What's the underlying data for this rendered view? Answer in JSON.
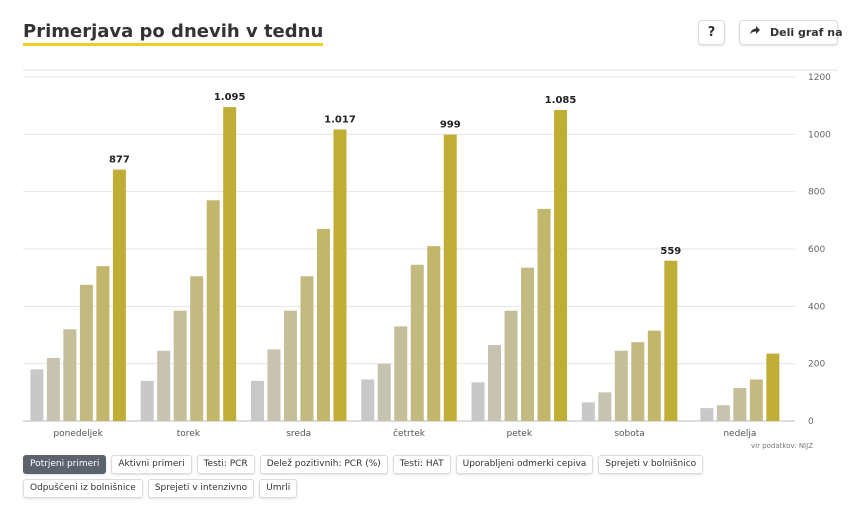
{
  "header": {
    "title": "Primerjava po dnevih v tednu",
    "help_label": "?",
    "share_label": "Deli graf na"
  },
  "source": "vir podatkov: NIJZ",
  "tabs": [
    {
      "label": "Potrjeni primeri",
      "active": true
    },
    {
      "label": "Aktivni primeri",
      "active": false
    },
    {
      "label": "Testi: PCR",
      "active": false
    },
    {
      "label": "Delež pozitivnih: PCR (%)",
      "active": false
    },
    {
      "label": "Testi: HAT",
      "active": false
    },
    {
      "label": "Uporabljeni odmerki cepiva",
      "active": false
    },
    {
      "label": "Sprejeti v bolnišnico",
      "active": false
    },
    {
      "label": "Odpuščeni iz bolnišnice",
      "active": false
    },
    {
      "label": "Sprejeti v intenzivno",
      "active": false
    },
    {
      "label": "Umrli",
      "active": false
    }
  ],
  "colors": {
    "bars": [
      "#c8c8c8",
      "#c6c3b0",
      "#c4bf99",
      "#c3ba82",
      "#c2b66a",
      "#c1b153",
      "#c0ad36"
    ],
    "accent": "#f1cd1f",
    "grid": "#e5e5e5"
  },
  "chart_data": {
    "type": "bar",
    "categories": [
      "ponedeljek",
      "torek",
      "sreda",
      "četrtek",
      "petek",
      "sobota",
      "nedelja"
    ],
    "series": [
      {
        "values": [
          180,
          140,
          140,
          145,
          135,
          65,
          45
        ]
      },
      {
        "values": [
          220,
          245,
          250,
          200,
          265,
          100,
          55
        ]
      },
      {
        "values": [
          320,
          385,
          385,
          330,
          385,
          245,
          115
        ]
      },
      {
        "values": [
          475,
          505,
          505,
          545,
          535,
          275,
          145
        ]
      },
      {
        "values": [
          540,
          770,
          670,
          610,
          740,
          315,
          235
        ]
      },
      {
        "values": [
          877,
          1095,
          1017,
          999,
          1085,
          559,
          null
        ]
      }
    ],
    "value_labels": [
      "877",
      "1.095",
      "1.017",
      "999",
      "1.085",
      "559",
      ""
    ],
    "ylim": [
      0,
      1200
    ],
    "yticks": [
      0,
      200,
      400,
      600,
      800,
      1000,
      1200
    ],
    "ytick_labels": [
      "0",
      "200",
      "400",
      "600",
      "800",
      "1000",
      "1200"
    ],
    "y_axis_position": "right",
    "grid": true
  }
}
